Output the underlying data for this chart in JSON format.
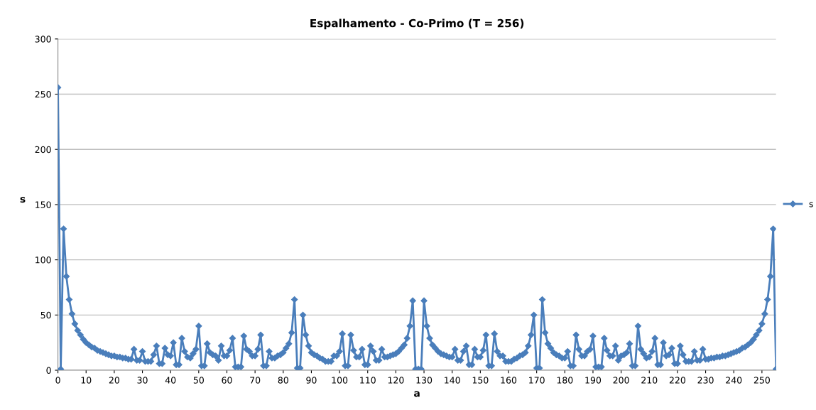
{
  "chart_data": {
    "type": "line",
    "title": "Espalhamento - Co-Primo (T = 256)",
    "xlabel": "a",
    "ylabel": "s",
    "x": [
      0,
      1,
      2,
      3,
      4,
      5,
      6,
      7,
      8,
      9,
      10,
      11,
      12,
      13,
      14,
      15,
      16,
      17,
      18,
      19,
      20,
      21,
      22,
      23,
      24,
      25,
      26,
      27,
      28,
      29,
      30,
      31,
      32,
      33,
      34,
      35,
      36,
      37,
      38,
      39,
      40,
      41,
      42,
      43,
      44,
      45,
      46,
      47,
      48,
      49,
      50,
      51,
      52,
      53,
      54,
      55,
      56,
      57,
      58,
      59,
      60,
      61,
      62,
      63,
      64,
      65,
      66,
      67,
      68,
      69,
      70,
      71,
      72,
      73,
      74,
      75,
      76,
      77,
      78,
      79,
      80,
      81,
      82,
      83,
      84,
      85,
      86,
      87,
      88,
      89,
      90,
      91,
      92,
      93,
      94,
      95,
      96,
      97,
      98,
      99,
      100,
      101,
      102,
      103,
      104,
      105,
      106,
      107,
      108,
      109,
      110,
      111,
      112,
      113,
      114,
      115,
      116,
      117,
      118,
      119,
      120,
      121,
      122,
      123,
      124,
      125,
      126,
      127,
      128,
      129,
      130,
      131,
      132,
      133,
      134,
      135,
      136,
      137,
      138,
      139,
      140,
      141,
      142,
      143,
      144,
      145,
      146,
      147,
      148,
      149,
      150,
      151,
      152,
      153,
      154,
      155,
      156,
      157,
      158,
      159,
      160,
      161,
      162,
      163,
      164,
      165,
      166,
      167,
      168,
      169,
      170,
      171,
      172,
      173,
      174,
      175,
      176,
      177,
      178,
      179,
      180,
      181,
      182,
      183,
      184,
      185,
      186,
      187,
      188,
      189,
      190,
      191,
      192,
      193,
      194,
      195,
      196,
      197,
      198,
      199,
      200,
      201,
      202,
      203,
      204,
      205,
      206,
      207,
      208,
      209,
      210,
      211,
      212,
      213,
      214,
      215,
      216,
      217,
      218,
      219,
      220,
      221,
      222,
      223,
      224,
      225,
      226,
      227,
      228,
      229,
      230,
      231,
      232,
      233,
      234,
      235,
      236,
      237,
      238,
      239,
      240,
      241,
      242,
      243,
      244,
      245,
      246,
      247,
      248,
      249,
      250,
      251,
      252,
      253,
      254,
      255
    ],
    "series": [
      {
        "name": "s",
        "color": "#4a7ebb",
        "values": [
          256,
          1,
          128,
          85,
          64,
          51,
          42,
          36,
          32,
          28,
          25,
          23,
          21,
          20,
          18,
          17,
          16,
          15,
          14,
          13,
          13,
          12,
          12,
          11,
          11,
          10,
          10,
          19,
          9,
          9,
          17,
          8,
          8,
          8,
          14,
          22,
          6,
          6,
          20,
          14,
          13,
          25,
          5,
          5,
          29,
          17,
          12,
          11,
          15,
          19,
          40,
          4,
          4,
          24,
          16,
          14,
          13,
          9,
          22,
          13,
          13,
          18,
          29,
          3,
          3,
          3,
          31,
          19,
          17,
          13,
          13,
          19,
          32,
          4,
          4,
          17,
          11,
          11,
          13,
          14,
          16,
          20,
          24,
          34,
          64,
          2,
          2,
          50,
          32,
          22,
          16,
          14,
          13,
          11,
          10,
          8,
          8,
          8,
          13,
          13,
          17,
          33,
          4,
          4,
          32,
          18,
          12,
          12,
          19,
          5,
          5,
          22,
          17,
          9,
          9,
          19,
          12,
          12,
          13,
          14,
          15,
          17,
          20,
          23,
          29,
          40,
          63,
          1,
          1,
          1,
          63,
          40,
          29,
          23,
          20,
          17,
          15,
          14,
          13,
          12,
          12,
          19,
          9,
          9,
          17,
          22,
          5,
          5,
          19,
          12,
          12,
          18,
          32,
          4,
          4,
          33,
          17,
          13,
          13,
          8,
          8,
          8,
          10,
          11,
          13,
          14,
          16,
          22,
          32,
          50,
          2,
          2,
          64,
          34,
          24,
          20,
          16,
          14,
          13,
          11,
          11,
          17,
          4,
          4,
          32,
          19,
          13,
          13,
          17,
          19,
          31,
          3,
          3,
          3,
          29,
          18,
          13,
          13,
          22,
          9,
          13,
          14,
          16,
          24,
          4,
          4,
          40,
          19,
          15,
          11,
          12,
          17,
          29,
          5,
          5,
          25,
          13,
          14,
          20,
          6,
          6,
          22,
          14,
          8,
          8,
          8,
          17,
          9,
          9,
          19,
          10,
          10,
          11,
          11,
          12,
          12,
          13,
          13,
          14,
          15,
          16,
          17,
          18,
          20,
          21,
          23,
          25,
          28,
          32,
          36,
          42,
          51,
          64,
          85,
          128,
          1
        ]
      }
    ],
    "xlim": [
      0,
      255
    ],
    "xticks": [
      0,
      10,
      20,
      30,
      40,
      50,
      60,
      70,
      80,
      90,
      100,
      110,
      120,
      130,
      140,
      150,
      160,
      170,
      180,
      190,
      200,
      210,
      220,
      230,
      240,
      250
    ],
    "ylim": [
      0,
      300
    ],
    "yticks": [
      0,
      50,
      100,
      150,
      200,
      250,
      300
    ],
    "grid": "y",
    "legend": "right",
    "marker": "diamond",
    "line_style": "solid"
  }
}
